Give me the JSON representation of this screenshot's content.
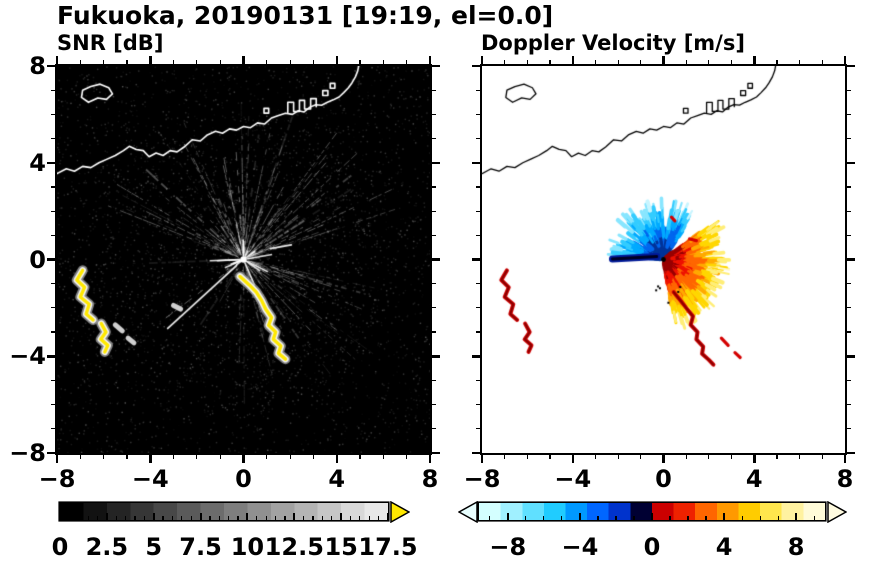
{
  "title": "Fukuoka, 20190131 [19:19, el=0.0]",
  "panels": {
    "snr": {
      "label": "SNR [dB]",
      "background": "#000000",
      "coast_color": "#ffffff",
      "xticks": [
        {
          "v": -8,
          "t": "−8"
        },
        {
          "v": -4,
          "t": "−4"
        },
        {
          "v": 0,
          "t": "0"
        },
        {
          "v": 4,
          "t": "4"
        },
        {
          "v": 8,
          "t": "8"
        }
      ],
      "yticks": [
        {
          "v": 8,
          "t": "8"
        },
        {
          "v": 4,
          "t": "4"
        },
        {
          "v": 0,
          "t": "0"
        },
        {
          "v": -4,
          "t": "−4"
        },
        {
          "v": -8,
          "t": "−8"
        }
      ],
      "colorbar": {
        "min": 0,
        "max": 17.5,
        "minor_step": 0.5,
        "major_step": 2.5,
        "tick_start": 0,
        "labels": [
          {
            "v": 0,
            "t": "0"
          },
          {
            "v": 2.5,
            "t": "2.5"
          },
          {
            "v": 5,
            "t": "5"
          },
          {
            "v": 7.5,
            "t": "7.5"
          },
          {
            "v": 10,
            "t": "10"
          },
          {
            "v": 12.5,
            "t": "12.5"
          },
          {
            "v": 15,
            "t": "15"
          },
          {
            "v": 17.5,
            "t": "17.5"
          }
        ],
        "colors": [
          "#000000",
          "#121212",
          "#242424",
          "#363636",
          "#484848",
          "#5a5a5a",
          "#6c6c6c",
          "#7e7e7e",
          "#909090",
          "#a2a2a2",
          "#b4b4b4",
          "#c6c6c6",
          "#d8d8d8",
          "#e8e8e8"
        ],
        "arrow_right": "#ffe800"
      }
    },
    "doppler": {
      "label": "Doppler Velocity [m/s]",
      "background": "#ffffff",
      "coast_color": "#000000",
      "xticks": [
        {
          "v": -8,
          "t": "−8"
        },
        {
          "v": -4,
          "t": "−4"
        },
        {
          "v": 0,
          "t": "0"
        },
        {
          "v": 4,
          "t": "4"
        },
        {
          "v": 8,
          "t": "8"
        }
      ],
      "yticks": [
        {
          "v": 8,
          "t": "8"
        },
        {
          "v": 4,
          "t": "4"
        },
        {
          "v": 0,
          "t": "0"
        },
        {
          "v": -4,
          "t": "−4"
        },
        {
          "v": -8,
          "t": "−8"
        }
      ],
      "colorbar": {
        "min": -9.6,
        "max": 9.6,
        "minor_step": 1,
        "major_step": 4,
        "tick_start": -9,
        "labels": [
          {
            "v": -8,
            "t": "−8"
          },
          {
            "v": -4,
            "t": "−4"
          },
          {
            "v": 0,
            "t": "0"
          },
          {
            "v": 4,
            "t": "4"
          },
          {
            "v": 8,
            "t": "8"
          }
        ],
        "colors": [
          "#d4ffff",
          "#a0f0ff",
          "#60e0ff",
          "#20ccff",
          "#0099ff",
          "#0066ff",
          "#0033cc",
          "#000033",
          "#cc0000",
          "#ee2200",
          "#ff6600",
          "#ff9900",
          "#ffcc00",
          "#ffe64d",
          "#fff2a0",
          "#fffbd8"
        ],
        "arrow_left": "#e8ffff",
        "arrow_right": "#fffbe0"
      }
    }
  },
  "coastline": {
    "main": [
      [
        -8,
        3.55
      ],
      [
        -7.6,
        3.75
      ],
      [
        -7.25,
        3.65
      ],
      [
        -6.9,
        3.85
      ],
      [
        -6.55,
        3.8
      ],
      [
        -6.2,
        4.0
      ],
      [
        -5.85,
        4.15
      ],
      [
        -5.5,
        4.3
      ],
      [
        -5.15,
        4.5
      ],
      [
        -4.9,
        4.68
      ],
      [
        -4.6,
        4.55
      ],
      [
        -4.3,
        4.5
      ],
      [
        -4.05,
        4.25
      ],
      [
        -3.75,
        4.4
      ],
      [
        -3.45,
        4.3
      ],
      [
        -3.15,
        4.5
      ],
      [
        -2.85,
        4.45
      ],
      [
        -2.55,
        4.65
      ],
      [
        -2.2,
        4.95
      ],
      [
        -1.85,
        4.9
      ],
      [
        -1.55,
        5.15
      ],
      [
        -1.2,
        5.3
      ],
      [
        -0.9,
        5.22
      ],
      [
        -0.6,
        5.4
      ],
      [
        -0.3,
        5.35
      ],
      [
        0,
        5.5
      ],
      [
        0.3,
        5.45
      ],
      [
        0.6,
        5.65
      ],
      [
        0.9,
        5.6
      ],
      [
        1.2,
        5.85
      ],
      [
        1.5,
        5.95
      ],
      [
        1.8,
        6.05
      ],
      [
        2.1,
        6.0
      ],
      [
        2.35,
        6.15
      ],
      [
        2.6,
        6.1
      ],
      [
        2.85,
        6.3
      ],
      [
        3.1,
        6.4
      ],
      [
        3.35,
        6.38
      ],
      [
        3.6,
        6.5
      ],
      [
        3.85,
        6.6
      ],
      [
        4.1,
        6.72
      ],
      [
        4.3,
        6.9
      ],
      [
        4.5,
        7.1
      ],
      [
        4.65,
        7.3
      ],
      [
        4.8,
        7.55
      ],
      [
        4.9,
        7.8
      ],
      [
        4.95,
        8.05
      ]
    ],
    "island": [
      [
        -6.65,
        6.5
      ],
      [
        -6.95,
        6.7
      ],
      [
        -6.9,
        7.0
      ],
      [
        -6.55,
        7.15
      ],
      [
        -6.15,
        7.25
      ],
      [
        -5.78,
        7.1
      ],
      [
        -5.62,
        6.85
      ],
      [
        -5.88,
        6.62
      ],
      [
        -6.25,
        6.68
      ],
      [
        -6.65,
        6.5
      ]
    ],
    "port": [
      [
        1.9,
        6.08
      ],
      [
        1.9,
        6.5
      ],
      [
        2.15,
        6.5
      ],
      [
        2.15,
        6.12
      ],
      [
        2.4,
        6.12
      ],
      [
        2.4,
        6.58
      ],
      [
        2.62,
        6.58
      ],
      [
        2.62,
        6.22
      ],
      [
        2.88,
        6.22
      ],
      [
        2.88,
        6.65
      ],
      [
        3.12,
        6.65
      ],
      [
        3.12,
        6.32
      ]
    ],
    "docks": [
      [
        [
          0.88,
          6.05
        ],
        [
          1.08,
          6.05
        ],
        [
          1.08,
          6.25
        ],
        [
          0.88,
          6.25
        ],
        [
          0.88,
          6.05
        ]
      ],
      [
        [
          3.4,
          6.78
        ],
        [
          3.62,
          6.78
        ],
        [
          3.62,
          6.98
        ],
        [
          3.4,
          6.98
        ],
        [
          3.4,
          6.78
        ]
      ],
      [
        [
          3.72,
          7.08
        ],
        [
          3.92,
          7.08
        ],
        [
          3.92,
          7.28
        ],
        [
          3.72,
          7.28
        ],
        [
          3.72,
          7.08
        ]
      ]
    ]
  },
  "chart_data": [
    {
      "type": "heatmap",
      "title": "SNR [dB]",
      "xlim": [
        -8,
        8
      ],
      "ylim": [
        -8,
        8
      ],
      "xticks": [
        -8,
        -4,
        0,
        4,
        8
      ],
      "yticks": [
        -8,
        -4,
        0,
        4,
        8
      ],
      "grid": false,
      "colorbar": {
        "range": [
          0,
          17.5
        ],
        "ticks": [
          0,
          2.5,
          5,
          7.5,
          10,
          12.5,
          15,
          17.5
        ],
        "colormap": "grayscale black to light gray",
        "over_color": "#ffe800"
      },
      "radar_center": [
        0,
        0
      ],
      "features": {
        "description": "Radar PPI SNR field: black background with speckle noise, bright radial clutter streaks from the radar at the origin, white Hakata Bay coastline, strong yellow/white echo arcs southwest and south-southeast of the radar",
        "echo_paths": {
          "west_arc1": [
            [
              -6.9,
              -0.45
            ],
            [
              -7.15,
              -0.85
            ],
            [
              -6.82,
              -1.15
            ],
            [
              -7.0,
              -1.55
            ],
            [
              -6.62,
              -1.85
            ],
            [
              -6.75,
              -2.25
            ],
            [
              -6.45,
              -2.5
            ]
          ],
          "west_arc2": [
            [
              -6.1,
              -2.65
            ],
            [
              -5.9,
              -3.0
            ],
            [
              -6.12,
              -3.3
            ],
            [
              -5.82,
              -3.55
            ],
            [
              -5.95,
              -3.82
            ]
          ],
          "southeast_arc": [
            [
              -0.15,
              -0.7
            ],
            [
              0.25,
              -1.05
            ],
            [
              0.55,
              -1.35
            ],
            [
              0.78,
              -1.7
            ],
            [
              0.95,
              -2.05
            ],
            [
              1.2,
              -2.4
            ],
            [
              1.08,
              -2.72
            ],
            [
              1.38,
              -3.0
            ],
            [
              1.28,
              -3.3
            ],
            [
              1.6,
              -3.58
            ],
            [
              1.5,
              -3.88
            ],
            [
              1.8,
              -4.12
            ]
          ]
        },
        "gray_spots": [
          [
            [
              -5.5,
              -2.7
            ],
            [
              -5.2,
              -2.95
            ]
          ],
          [
            [
              -4.95,
              -3.25
            ],
            [
              -4.7,
              -3.45
            ]
          ],
          [
            [
              -3.0,
              -1.9
            ],
            [
              -2.7,
              -2.05
            ]
          ]
        ],
        "bright_dashes": [
          [
            [
              1.15,
              0.45
            ],
            [
              2.05,
              0.6
            ]
          ],
          [
            [
              -0.3,
              -0.25
            ],
            [
              -3.25,
              -2.85
            ]
          ]
        ]
      }
    },
    {
      "type": "heatmap",
      "title": "Doppler Velocity [m/s]",
      "xlim": [
        -8,
        8
      ],
      "ylim": [
        -8,
        8
      ],
      "xticks": [
        -8,
        -4,
        0,
        4,
        8
      ],
      "yticks": [
        -8,
        -4,
        0,
        4,
        8
      ],
      "grid": false,
      "colorbar": {
        "range": [
          -9.6,
          9.6
        ],
        "ticks": [
          -8,
          -4,
          0,
          4,
          8
        ],
        "colormap": "cyan-blue-black-red-orange-yellow",
        "under_color": "#e8ffff",
        "over_color": "#fffbe0"
      },
      "radar_center": [
        0,
        0
      ],
      "features": {
        "description": "Doppler velocity fan around the radar: negative velocities (cyan/blue) toward the north-northwest, a dark-blue streak due west, positive velocities (red/orange/yellow) toward the east-southeast, scattered red echoes southwest and south-southeast",
        "cool_fan": {
          "angles_deg": [
            55,
            175
          ],
          "radius": [
            0.15,
            2.6
          ],
          "spokes": 130,
          "colors": [
            "#003399",
            "#0066ee",
            "#00aaff",
            "#33ccff",
            "#88e6ff",
            "#c8f5ff"
          ]
        },
        "warm_fan": {
          "angles_deg": [
            -82,
            38
          ],
          "radius": [
            0.15,
            3.0
          ],
          "spokes": 170,
          "colors": [
            "#990000",
            "#ee1100",
            "#ff6600",
            "#ffaa00",
            "#ffd700",
            "#ffee77",
            "#fff9c8"
          ]
        },
        "west_streak": {
          "from": [
            -2.25,
            0.02
          ],
          "to": [
            -0.3,
            0.12
          ],
          "color": "#001a99",
          "core": "#000022",
          "width": 7
        },
        "red_paths": {
          "west_arc1": [
            [
              -6.9,
              -0.45
            ],
            [
              -7.15,
              -0.85
            ],
            [
              -6.82,
              -1.15
            ],
            [
              -7.0,
              -1.55
            ],
            [
              -6.62,
              -1.85
            ],
            [
              -6.75,
              -2.25
            ],
            [
              -6.45,
              -2.5
            ]
          ],
          "west_arc2": [
            [
              -6.1,
              -2.65
            ],
            [
              -5.9,
              -3.0
            ],
            [
              -6.12,
              -3.3
            ],
            [
              -5.82,
              -3.55
            ],
            [
              -5.95,
              -3.82
            ]
          ],
          "southeast_arc": [
            [
              0.45,
              -1.35
            ],
            [
              0.75,
              -1.7
            ],
            [
              1.0,
              -2.0
            ],
            [
              1.3,
              -2.35
            ],
            [
              1.2,
              -2.7
            ],
            [
              1.5,
              -3.0
            ],
            [
              1.45,
              -3.3
            ],
            [
              1.75,
              -3.6
            ],
            [
              1.7,
              -3.9
            ],
            [
              2.0,
              -4.15
            ],
            [
              2.2,
              -4.35
            ]
          ]
        },
        "red_dashes": [
          [
            [
              2.55,
              -3.25
            ],
            [
              2.85,
              -3.55
            ]
          ],
          [
            [
              3.15,
              -3.85
            ],
            [
              3.38,
              -4.05
            ]
          ],
          [
            [
              1.15,
              0.85
            ],
            [
              1.45,
              0.78
            ]
          ],
          [
            [
              0.35,
              1.75
            ],
            [
              0.5,
              1.6
            ]
          ]
        ]
      }
    }
  ]
}
